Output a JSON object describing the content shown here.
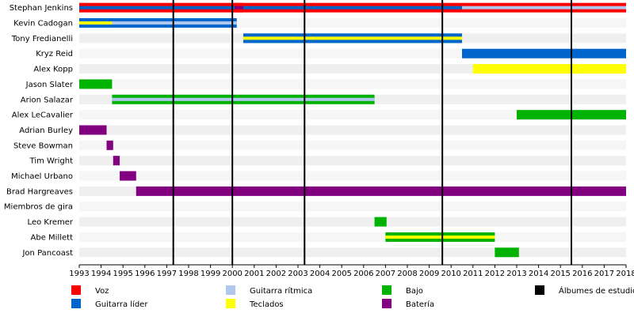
{
  "chart_data": {
    "type": "timeline",
    "xlim": [
      1993,
      2018
    ],
    "x_ticks": [
      "1993",
      "1994",
      "1995",
      "1996",
      "1997",
      "1998",
      "1999",
      "2000",
      "2001",
      "2002",
      "2003",
      "2004",
      "2005",
      "2006",
      "2007",
      "2008",
      "2009",
      "2010",
      "2011",
      "2012",
      "2013",
      "2014",
      "2015",
      "2016",
      "2017",
      "2018"
    ],
    "grid": false,
    "album_lines": [
      1997.3,
      2000.0,
      2003.3,
      2009.6,
      2015.5
    ],
    "roles": {
      "voz": {
        "label": "Voz",
        "color": "#ff0000"
      },
      "guitarra": {
        "label": "Guitarra líder",
        "color": "#0066cc"
      },
      "ritmica": {
        "label": "Guitarra rítmica",
        "color": "#b0c8f0"
      },
      "teclados": {
        "label": "Teclados",
        "color": "#ffff00"
      },
      "bajo": {
        "label": "Bajo",
        "color": "#00b300"
      },
      "bateria": {
        "label": "Batería",
        "color": "#800080"
      },
      "albumes": {
        "label": "Álbumes de estudio",
        "color": "#000000"
      }
    },
    "legend_order": [
      "voz",
      "guitarra",
      "ritmica",
      "teclados",
      "bajo",
      "bateria",
      "albumes"
    ],
    "legend_placement": "bottom",
    "members": [
      {
        "name": "Stephan Jenkins",
        "bars": [
          {
            "start": 1993,
            "end": 2010.5,
            "role": "voz",
            "stripe": "guitarra"
          },
          {
            "start": 2000.1,
            "end": 2000.5,
            "role": "voz",
            "stripe": "bateria",
            "overlay": true
          },
          {
            "start": 2010.5,
            "end": 2018,
            "role": "voz",
            "stripe": "ritmica"
          }
        ]
      },
      {
        "name": "Kevin Cadogan",
        "bars": [
          {
            "start": 1993,
            "end": 2000.2,
            "role": "guitarra",
            "stripe": "ritmica"
          },
          {
            "start": 1993,
            "end": 1994.5,
            "role": "guitarra",
            "stripe": "teclados",
            "overlay": true
          }
        ]
      },
      {
        "name": "Tony Fredianelli",
        "bars": [
          {
            "start": 2000.5,
            "end": 2010.5,
            "role": "guitarra",
            "stripe": "ritmica"
          },
          {
            "start": 2000.5,
            "end": 2010.5,
            "role": "guitarra",
            "stripe": "teclados",
            "overlay": true
          }
        ]
      },
      {
        "name": "Kryz Reid",
        "bars": [
          {
            "start": 2010.5,
            "end": 2018,
            "role": "guitarra"
          }
        ]
      },
      {
        "name": "Alex Kopp",
        "bars": [
          {
            "start": 2011.0,
            "end": 2018,
            "role": "teclados"
          }
        ]
      },
      {
        "name": "Jason Slater",
        "bars": [
          {
            "start": 1993,
            "end": 1994.5,
            "role": "bajo"
          }
        ]
      },
      {
        "name": "Arion Salazar",
        "bars": [
          {
            "start": 1994.5,
            "end": 2006.5,
            "role": "bajo",
            "stripe": "ritmica"
          }
        ]
      },
      {
        "name": "Alex LeCavalier",
        "bars": [
          {
            "start": 2013.0,
            "end": 2018,
            "role": "bajo"
          }
        ]
      },
      {
        "name": "Adrian Burley",
        "bars": [
          {
            "start": 1993,
            "end": 1994.25,
            "role": "bateria"
          }
        ]
      },
      {
        "name": "Steve Bowman",
        "bars": [
          {
            "start": 1994.25,
            "end": 1994.55,
            "role": "bateria"
          }
        ]
      },
      {
        "name": "Tim Wright",
        "bars": [
          {
            "start": 1994.55,
            "end": 1994.85,
            "role": "bateria"
          }
        ]
      },
      {
        "name": "Michael Urbano",
        "bars": [
          {
            "start": 1994.85,
            "end": 1995.6,
            "role": "bateria"
          }
        ]
      },
      {
        "name": "Brad Hargreaves",
        "bars": [
          {
            "start": 1995.6,
            "end": 2018,
            "role": "bateria"
          }
        ]
      },
      {
        "name": "Miembros de gira",
        "bars": []
      },
      {
        "name": "Leo Kremer",
        "bars": [
          {
            "start": 2006.5,
            "end": 2007.05,
            "role": "bajo"
          }
        ]
      },
      {
        "name": "Abe Millett",
        "bars": [
          {
            "start": 2007.0,
            "end": 2012.0,
            "role": "bajo",
            "stripe": "teclados"
          }
        ]
      },
      {
        "name": "Jon Pancoast",
        "bars": [
          {
            "start": 2012.0,
            "end": 2013.1,
            "role": "bajo"
          }
        ]
      }
    ]
  }
}
